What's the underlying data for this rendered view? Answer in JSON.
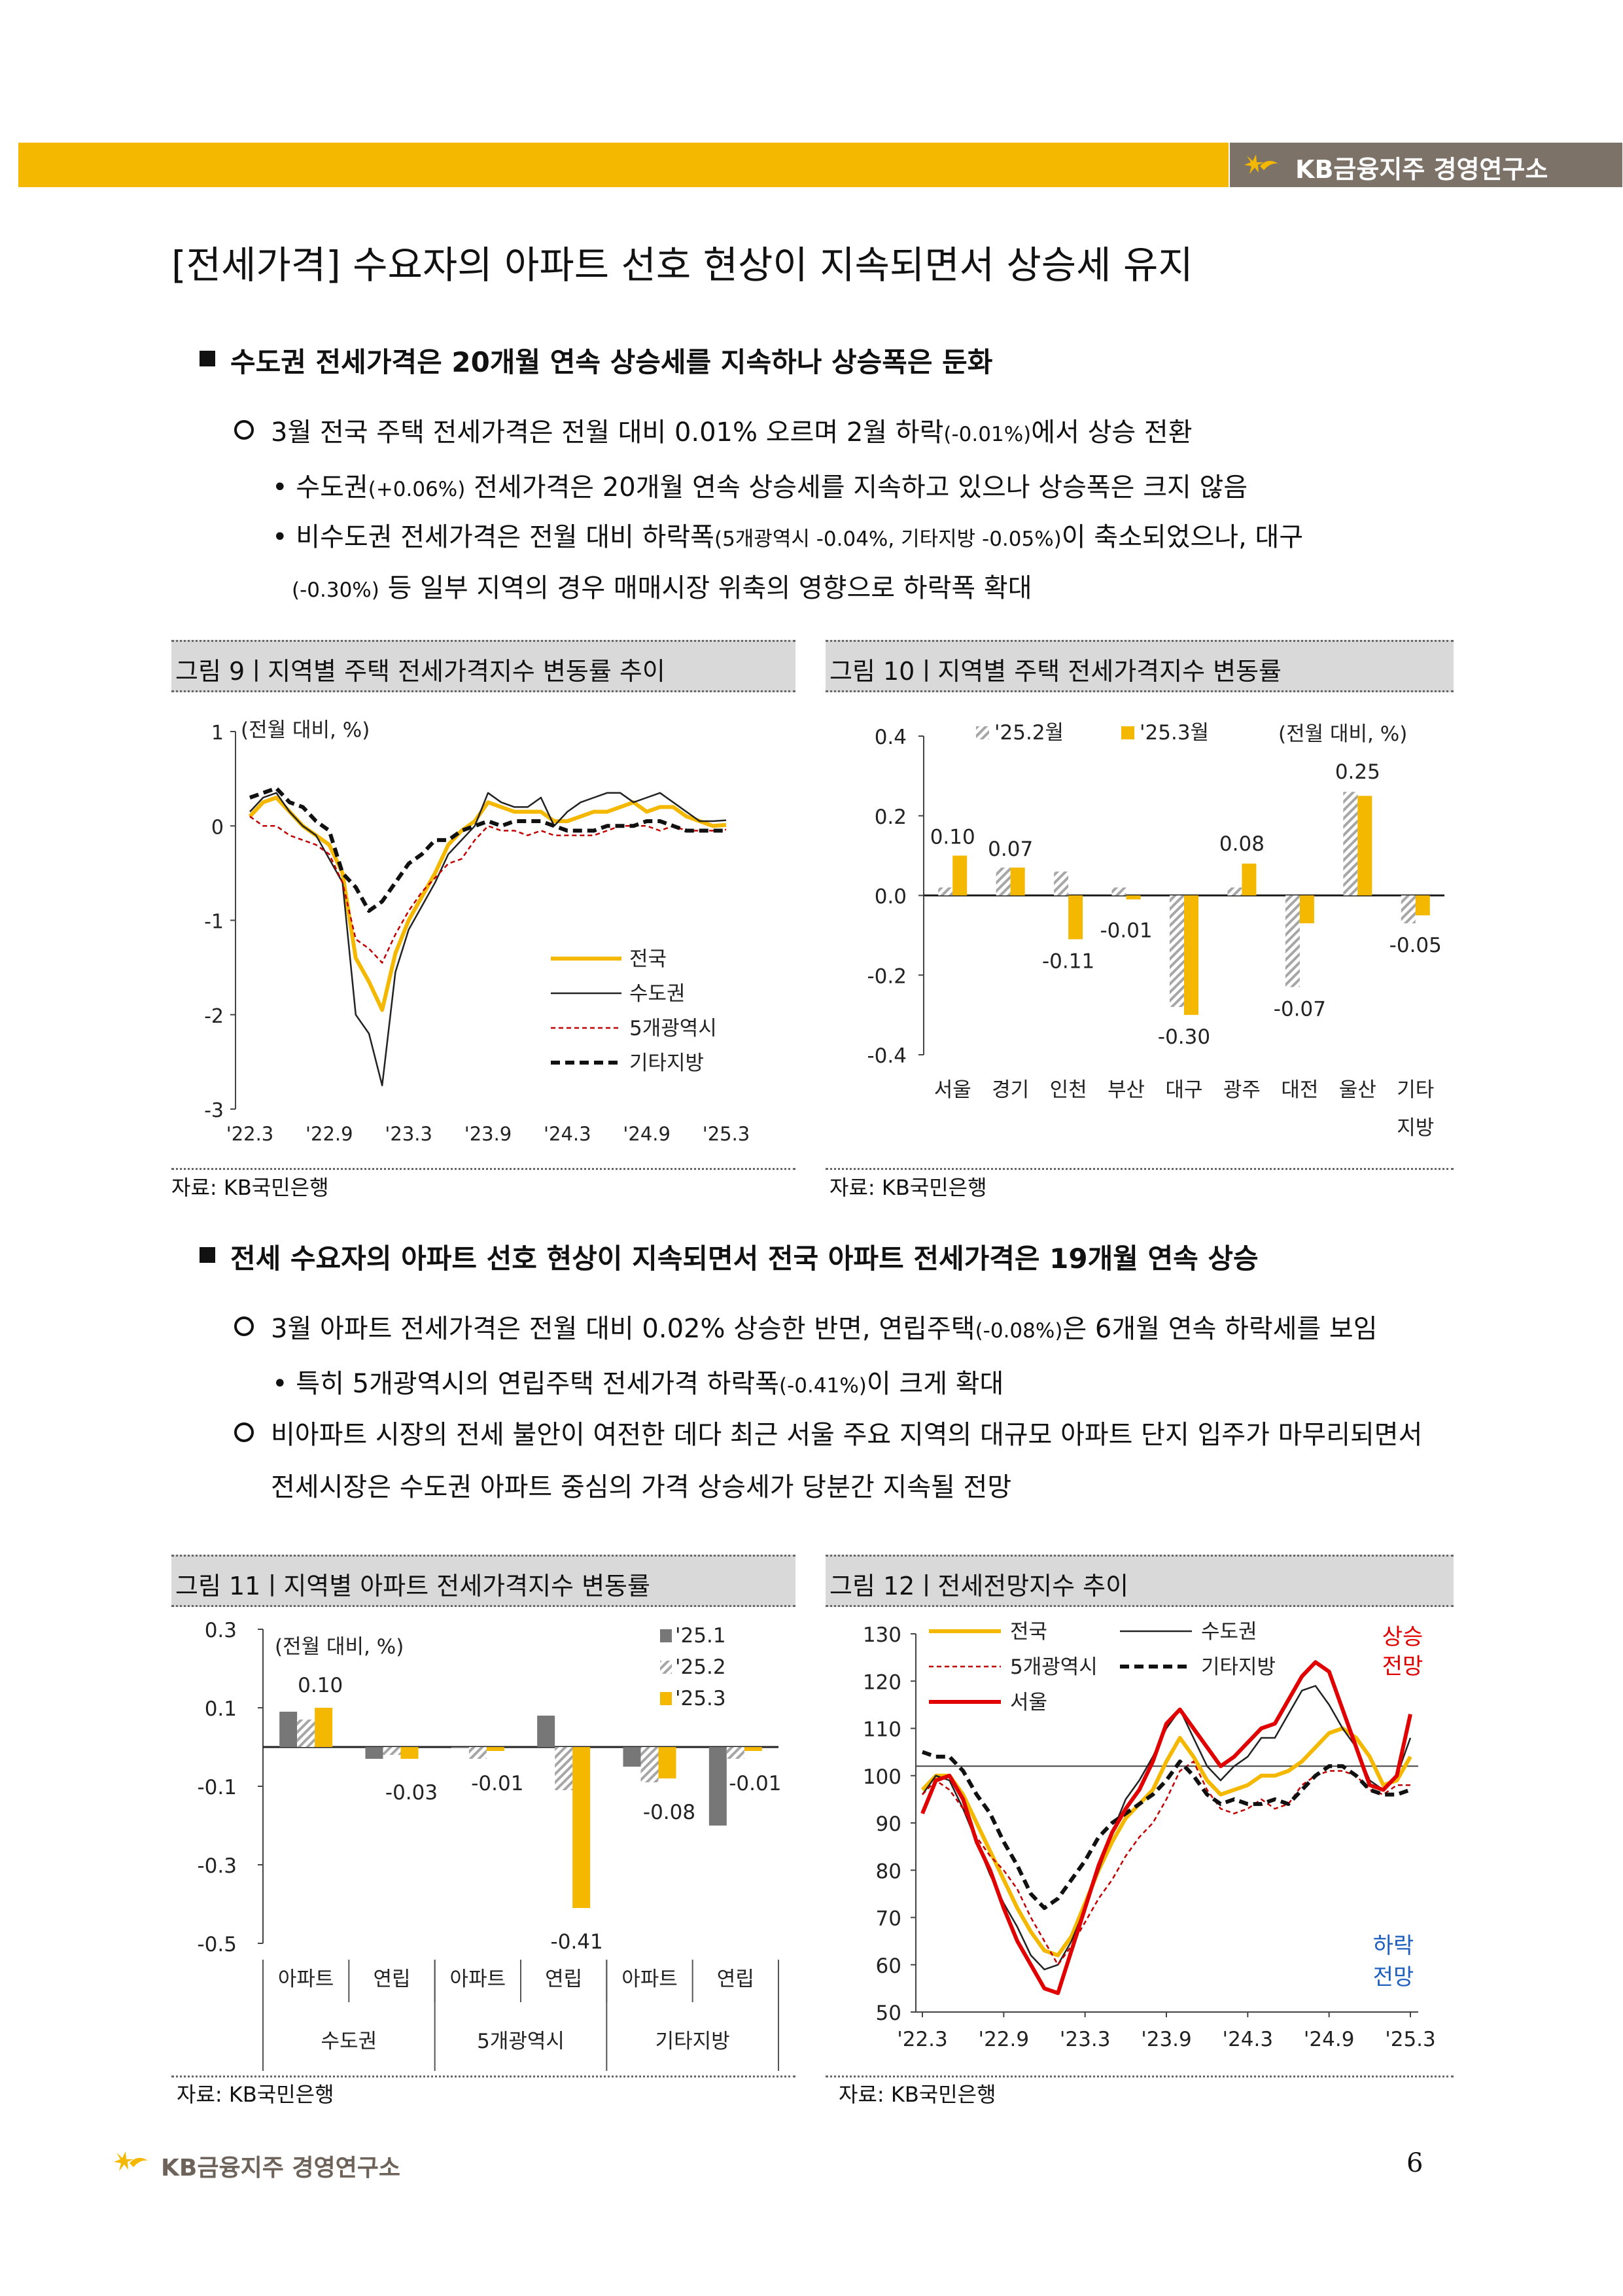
{
  "header": {
    "brand": "KB금융지주 경영연구소"
  },
  "title": "[전세가격] 수요자의 아파트 선호 현상이 지속되면서 상승세 유지",
  "section1": {
    "heading": "수도권 전세가격은 20개월 연속 상승세를 지속하나 상승폭은 둔화",
    "bullet1_a": "3월 전국 주택 전세가격은 전월 대비 0.01% 오르며 2월 하락",
    "bullet1_b": "(-0.01%)",
    "bullet1_c": "에서 상승 전환",
    "sub1_a": "• 수도권",
    "sub1_b": "(+0.06%)",
    "sub1_c": " 전세가격은 20개월 연속 상승세를 지속하고 있으나 상승폭은 크지 않음",
    "sub2_a": "• 비수도권 전세가격은 전월 대비 하락폭",
    "sub2_b": "(5개광역시 -0.04%, 기타지방 -0.05%)",
    "sub2_c": "이 축소되었으나, 대구",
    "sub2_line2_a": "(-0.30%)",
    "sub2_line2_b": " 등 일부 지역의 경우 매매시장 위축의 영향으로 하락폭 확대"
  },
  "fig9": {
    "caption": "그림 9ㅣ지역별 주택 전세가격지수 변동률 추이",
    "source": "자료: KB국민은행",
    "unit": "(전월 대비, %)"
  },
  "fig10": {
    "caption": "그림 10ㅣ지역별 주택 전세가격지수 변동률",
    "source": "자료: KB국민은행",
    "unit": "(전월 대비, %)"
  },
  "section2": {
    "heading": "전세 수요자의 아파트 선호 현상이 지속되면서 전국 아파트 전세가격은 19개월 연속 상승",
    "bullet1_a": "3월 아파트 전세가격은 전월 대비 0.02% 상승한 반면, 연립주택",
    "bullet1_b": "(-0.08%)",
    "bullet1_c": "은 6개월 연속 하락세를 보임",
    "sub1_a": "• 특히 5개광역시의 연립주택 전세가격 하락폭",
    "sub1_b": "(-0.41%)",
    "sub1_c": "이 크게 확대",
    "bullet2_line1": "비아파트 시장의 전세 불안이 여전한 데다 최근 서울 주요 지역의 대규모 아파트 단지 입주가 마무리되면서",
    "bullet2_line2": "전세시장은 수도권 아파트 중심의 가격 상승세가 당분간 지속될 전망"
  },
  "fig11": {
    "caption": "그림 11ㅣ지역별 아파트 전세가격지수 변동률",
    "source": "자료: KB국민은행",
    "unit": "(전월 대비, %)"
  },
  "fig12": {
    "caption": "그림 12ㅣ전세전망지수 추이",
    "source": "자료: KB국민은행",
    "up_label_1": "상승",
    "up_label_2": "전망",
    "down_label_1": "하락",
    "down_label_2": "전망"
  },
  "footer": {
    "brand": "KB금융지주 경영연구소",
    "page": "6"
  },
  "colors": {
    "gold": "#f5b800",
    "gray": "#7c7268",
    "red": "#e00000",
    "blue": "#1f5fbf"
  },
  "chart_data": [
    {
      "id": "fig9",
      "type": "line",
      "ylim": [
        -3,
        1
      ],
      "yticks": [
        "1",
        "0",
        "-1",
        "-2",
        "-3"
      ],
      "xticks": [
        "'22.3",
        "'22.9",
        "'23.3",
        "'23.9",
        "'24.3",
        "'24.9",
        "'25.3"
      ],
      "n_points": 37,
      "series": [
        {
          "name": "전국",
          "style": "gold",
          "values": [
            0.1,
            0.25,
            0.3,
            0.15,
            0.0,
            -0.1,
            -0.2,
            -0.5,
            -1.4,
            -1.65,
            -1.95,
            -1.35,
            -1.0,
            -0.75,
            -0.5,
            -0.2,
            -0.05,
            0.05,
            0.25,
            0.2,
            0.15,
            0.15,
            0.15,
            0.05,
            0.05,
            0.1,
            0.15,
            0.15,
            0.2,
            0.25,
            0.15,
            0.2,
            0.2,
            0.1,
            0.05,
            0.0,
            0.01
          ]
        },
        {
          "name": "수도권",
          "style": "black",
          "values": [
            0.15,
            0.3,
            0.35,
            0.15,
            0.0,
            -0.1,
            -0.35,
            -0.6,
            -2.0,
            -2.2,
            -2.75,
            -1.55,
            -1.1,
            -0.85,
            -0.6,
            -0.3,
            -0.15,
            0.0,
            0.35,
            0.25,
            0.2,
            0.2,
            0.3,
            0.0,
            0.15,
            0.25,
            0.3,
            0.35,
            0.35,
            0.25,
            0.3,
            0.35,
            0.25,
            0.15,
            0.05,
            0.05,
            0.06
          ]
        },
        {
          "name": "5개광역시",
          "style": "red-dash",
          "values": [
            0.1,
            0.0,
            0.0,
            -0.1,
            -0.15,
            -0.2,
            -0.3,
            -0.6,
            -1.2,
            -1.3,
            -1.45,
            -1.15,
            -0.9,
            -0.7,
            -0.55,
            -0.4,
            -0.35,
            -0.15,
            0.0,
            -0.05,
            -0.05,
            -0.1,
            -0.05,
            -0.1,
            -0.1,
            -0.1,
            -0.1,
            -0.05,
            0.0,
            0.0,
            0.0,
            -0.05,
            0.0,
            -0.05,
            -0.05,
            -0.05,
            -0.04
          ]
        },
        {
          "name": "기타지방",
          "style": "black-dash",
          "values": [
            0.3,
            0.35,
            0.4,
            0.25,
            0.2,
            0.05,
            -0.05,
            -0.5,
            -0.65,
            -0.9,
            -0.8,
            -0.6,
            -0.4,
            -0.3,
            -0.15,
            -0.15,
            -0.05,
            0.0,
            0.05,
            0.0,
            0.05,
            0.05,
            0.05,
            0.0,
            -0.05,
            -0.05,
            -0.05,
            0.0,
            0.0,
            0.0,
            0.05,
            0.05,
            0.0,
            -0.05,
            -0.05,
            -0.05,
            -0.05
          ]
        }
      ],
      "legend": [
        "전국",
        "수도권",
        "5개광역시",
        "기타지방"
      ]
    },
    {
      "id": "fig10",
      "type": "bar",
      "ylim": [
        -0.4,
        0.4
      ],
      "yticks": [
        "0.4",
        "0.2",
        "0.0",
        "-0.2",
        "-0.4"
      ],
      "categories": [
        "서울",
        "경기",
        "인천",
        "부산",
        "대구",
        "광주",
        "대전",
        "울산",
        "기타|지방"
      ],
      "series": [
        {
          "name": "'25.2월",
          "style": "hatch",
          "values": [
            0.02,
            0.07,
            0.06,
            0.02,
            -0.28,
            0.02,
            -0.23,
            0.26,
            -0.07
          ]
        },
        {
          "name": "'25.3월",
          "style": "gold",
          "values": [
            0.1,
            0.07,
            -0.11,
            -0.01,
            -0.3,
            0.08,
            -0.07,
            0.25,
            -0.05
          ]
        }
      ],
      "data_labels": [
        "0.10",
        "0.07",
        "-0.11",
        "-0.01",
        "-0.30",
        "0.08",
        "-0.07",
        "0.25",
        "-0.05"
      ]
    },
    {
      "id": "fig11",
      "type": "bar",
      "ylim": [
        -0.5,
        0.3
      ],
      "yticks": [
        "0.3",
        "0.1",
        "-0.1",
        "-0.3",
        "-0.5"
      ],
      "categories": [
        "아파트",
        "연립",
        "아파트",
        "연립",
        "아파트",
        "연립"
      ],
      "groups": [
        "수도권",
        "5개광역시",
        "기타지방"
      ],
      "series": [
        {
          "name": "'25.1",
          "style": "gray",
          "values": [
            0.09,
            -0.03,
            0.0,
            0.08,
            -0.05,
            -0.2
          ]
        },
        {
          "name": "'25.2",
          "style": "hatch",
          "values": [
            0.07,
            -0.02,
            -0.03,
            -0.11,
            -0.09,
            -0.03
          ]
        },
        {
          "name": "'25.3",
          "style": "gold",
          "values": [
            0.1,
            -0.03,
            -0.01,
            -0.41,
            -0.08,
            -0.01
          ]
        }
      ],
      "data_labels": [
        "0.10",
        "-0.03",
        "-0.01",
        "-0.41",
        "-0.08",
        "-0.01"
      ]
    },
    {
      "id": "fig12",
      "type": "line",
      "ylim": [
        50,
        130
      ],
      "yticks": [
        "130",
        "120",
        "110",
        "100",
        "90",
        "80",
        "70",
        "60",
        "50"
      ],
      "xticks": [
        "'22.3",
        "'22.9",
        "'23.3",
        "'23.9",
        "'24.3",
        "'24.9",
        "'25.3"
      ],
      "reference": 102,
      "n_points": 37,
      "series": [
        {
          "name": "전국",
          "style": "gold",
          "values": [
            97,
            100,
            100,
            96,
            90,
            84,
            78,
            72,
            67,
            63,
            62,
            66,
            73,
            80,
            86,
            91,
            94,
            97,
            103,
            108,
            104,
            99,
            96,
            97,
            98,
            100,
            100,
            101,
            103,
            106,
            109,
            110,
            108,
            104,
            98,
            99,
            104
          ]
        },
        {
          "name": "수도권",
          "style": "black",
          "values": [
            96,
            100,
            99,
            93,
            86,
            79,
            73,
            68,
            62,
            59,
            60,
            65,
            72,
            80,
            88,
            95,
            99,
            104,
            110,
            114,
            108,
            102,
            99,
            102,
            104,
            108,
            108,
            113,
            118,
            119,
            115,
            110,
            106,
            99,
            97,
            100,
            108
          ]
        },
        {
          "name": "5개광역시",
          "style": "red-dash",
          "values": [
            96,
            99,
            97,
            93,
            87,
            83,
            80,
            76,
            70,
            65,
            60,
            64,
            69,
            74,
            78,
            83,
            87,
            90,
            95,
            101,
            103,
            97,
            93,
            92,
            93,
            95,
            93,
            94,
            98,
            100,
            101,
            101,
            100,
            97,
            96,
            98,
            98
          ]
        },
        {
          "name": "기타지방",
          "style": "black-dash",
          "values": [
            105,
            104,
            104,
            101,
            96,
            92,
            86,
            81,
            75,
            72,
            74,
            78,
            82,
            87,
            90,
            92,
            94,
            96,
            99,
            103,
            100,
            96,
            94,
            95,
            94,
            94,
            95,
            94,
            97,
            100,
            102,
            102,
            100,
            97,
            96,
            96,
            97
          ]
        },
        {
          "name": "서울",
          "style": "red",
          "values": [
            92,
            99,
            100,
            95,
            86,
            80,
            72,
            65,
            60,
            55,
            54,
            63,
            72,
            81,
            88,
            93,
            97,
            103,
            111,
            114,
            110,
            106,
            102,
            104,
            107,
            110,
            111,
            116,
            121,
            124,
            122,
            114,
            106,
            98,
            97,
            100,
            113
          ]
        }
      ],
      "legend": [
        "전국",
        "수도권",
        "5개광역시",
        "기타지방",
        "서울"
      ]
    }
  ]
}
